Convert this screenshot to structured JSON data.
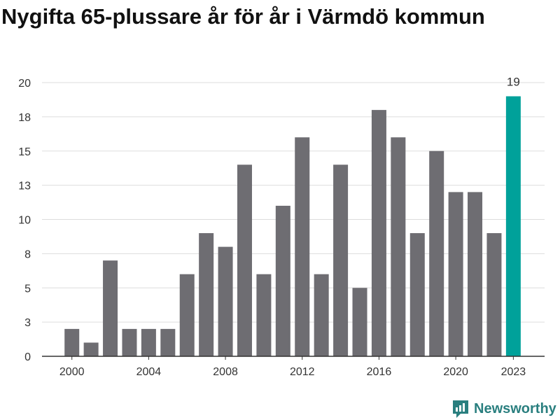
{
  "title": "Nygifta 65-plussare år för år i Värmdö kommun",
  "brand": {
    "name": "Newsworthy",
    "color": "#2a7f7f"
  },
  "colors": {
    "default_bar": "#6e6d72",
    "highlight_bar": "#00a19a",
    "grid": "#dddddd",
    "axis": "#333333"
  },
  "chart_data": {
    "type": "bar",
    "title": "Nygifta 65-plussare år för år i Värmdö kommun",
    "xlabel": "",
    "ylabel": "",
    "categories": [
      "2000",
      "2001",
      "2002",
      "2003",
      "2004",
      "2005",
      "2006",
      "2007",
      "2008",
      "2009",
      "2010",
      "2011",
      "2012",
      "2013",
      "2014",
      "2015",
      "2016",
      "2017",
      "2018",
      "2019",
      "2020",
      "2021",
      "2022",
      "2023"
    ],
    "values": [
      2,
      1,
      7,
      2,
      2,
      2,
      6,
      9,
      8,
      14,
      6,
      11,
      16,
      6,
      14,
      5,
      18,
      16,
      9,
      15,
      12,
      12,
      9,
      19
    ],
    "highlight_index": 23,
    "data_labels": [
      {
        "category": "2023",
        "text": "19"
      }
    ],
    "x_tick_labels": [
      "2000",
      "2004",
      "2008",
      "2012",
      "2016",
      "2020",
      "2023"
    ],
    "y_ticks": [
      0,
      2.5,
      5,
      7.5,
      10,
      12.5,
      15,
      17.5,
      20
    ],
    "y_tick_labels": [
      "0",
      "3",
      "5",
      "8",
      "10",
      "13",
      "15",
      "18",
      "20"
    ],
    "ylim": [
      0,
      20
    ],
    "grid": true
  }
}
